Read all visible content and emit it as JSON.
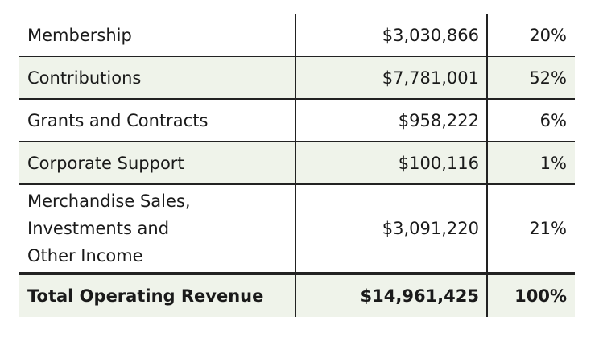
{
  "table": {
    "rows": [
      {
        "label": "Membership",
        "amount": "$3,030,866",
        "percent": "20%"
      },
      {
        "label": "Contributions",
        "amount": "$7,781,001",
        "percent": "52%"
      },
      {
        "label": "Grants and Contracts",
        "amount": "$958,222",
        "percent": "6%"
      },
      {
        "label": "Corporate Support",
        "amount": "$100,116",
        "percent": "1%"
      },
      {
        "label": [
          "Merchandise Sales,",
          "Investments and",
          "Other Income"
        ],
        "amount": "$3,091,220",
        "percent": "21%"
      }
    ],
    "total": {
      "label": "Total Operating Revenue",
      "amount": "$14,961,425",
      "percent": "100%"
    }
  }
}
